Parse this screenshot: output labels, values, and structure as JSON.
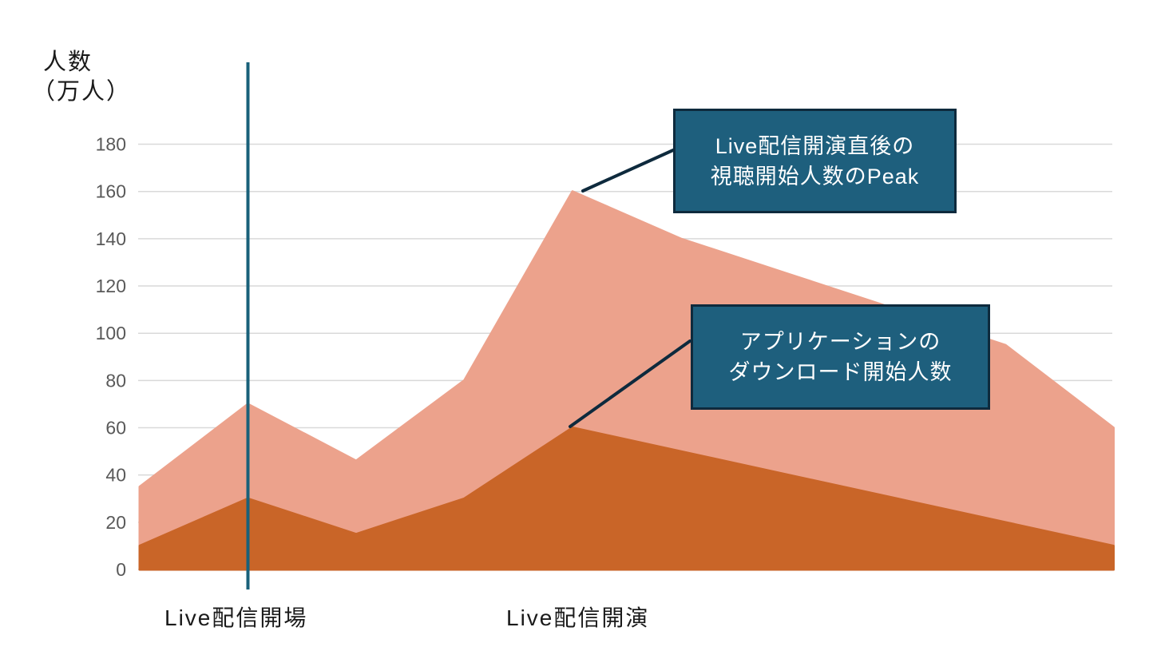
{
  "chart_data": {
    "type": "area",
    "title": "",
    "ylabel": {
      "line1": "人数",
      "line2": "（万人）"
    },
    "y_ticks": [
      0,
      20,
      40,
      60,
      80,
      100,
      120,
      140,
      160,
      180
    ],
    "ylim": [
      0,
      180
    ],
    "grid": "on",
    "legend": "none",
    "x_point_count": 10,
    "x_labels": [
      {
        "text": "Live配信開場",
        "at_point_index": 1
      },
      {
        "text": "Live配信開演",
        "at_point_index": 4
      }
    ],
    "vertical_event_line": {
      "at_point_index": 1
    },
    "series": [
      {
        "name": "視聴開始人数",
        "color": "#eca28c",
        "values": [
          35,
          70,
          46,
          80,
          160,
          140,
          125,
          110,
          95,
          60
        ]
      },
      {
        "name": "ダウンロード開始人数",
        "color": "#c96528",
        "values": [
          10,
          30,
          15,
          30,
          60,
          50,
          40,
          30,
          20,
          10
        ]
      }
    ],
    "annotations": [
      {
        "line1": "Live配信開演直後の",
        "line2": "視聴開始人数のPeak"
      },
      {
        "line1": "アプリケーションの",
        "line2": "ダウンロード開始人数"
      }
    ],
    "colors": {
      "background": "#ffffff",
      "gridline": "#d9d9d9",
      "tick_label": "#595959",
      "axis_label": "#1a1a1a",
      "event_line": "#19617a",
      "callout_fill": "#1e5f7d",
      "callout_border": "#0e2a3d",
      "leader_line": "#0e2a3d"
    }
  }
}
